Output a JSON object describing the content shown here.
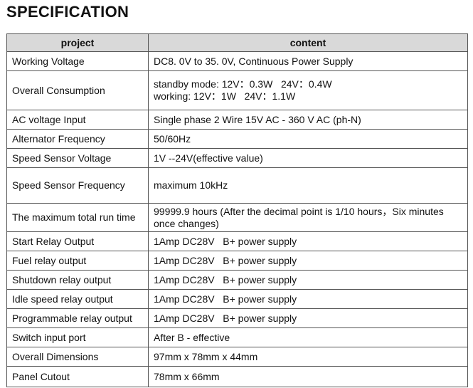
{
  "title": "SPECIFICATION",
  "table": {
    "header": [
      "project",
      "content"
    ],
    "rows": [
      [
        "Working Voltage",
        "DC8. 0V to 35. 0V, Continuous Power Supply"
      ],
      [
        "Overall Consumption",
        [
          "standby mode: 12V：0.3W   24V：0.4W",
          "working: 12V：1W   24V：1.1W"
        ]
      ],
      [
        "AC voltage Input",
        "Single phase 2 Wire 15V AC - 360 V AC (ph-N)"
      ],
      [
        "Alternator Frequency",
        "50/60Hz"
      ],
      [
        "Speed Sensor Voltage",
        "1V --24V(effective value)"
      ],
      [
        "Speed Sensor Frequency",
        "maximum 10kHz"
      ],
      [
        "The maximum total run time",
        "99999.9 hours (After the decimal point is 1/10 hours，Six minutes once changes)"
      ],
      [
        "Start Relay Output",
        "1Amp DC28V   B+ power supply"
      ],
      [
        "Fuel relay output",
        "1Amp DC28V   B+ power supply"
      ],
      [
        "Shutdown relay output",
        "1Amp DC28V   B+ power supply"
      ],
      [
        "Idle speed relay output",
        "1Amp DC28V   B+ power supply"
      ],
      [
        "Programmable relay output",
        "1Amp DC28V   B+ power supply"
      ],
      [
        "Switch input port",
        "After B - effective"
      ],
      [
        "Overall Dimensions",
        "97mm x 78mm x 44mm"
      ],
      [
        "Panel Cutout",
        "78mm x 66mm"
      ]
    ]
  }
}
